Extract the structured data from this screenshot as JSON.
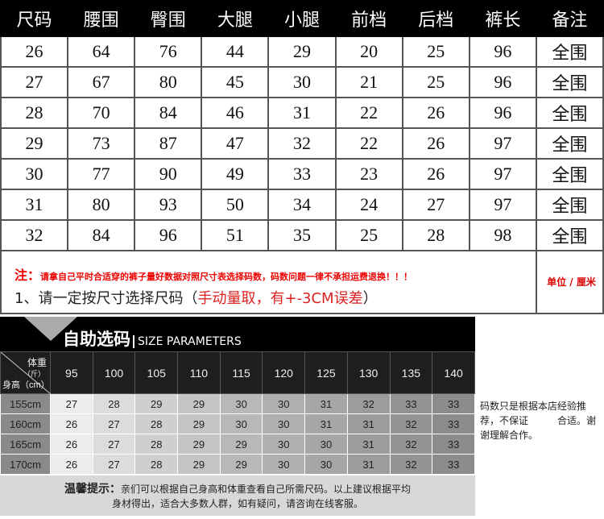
{
  "size_table": {
    "headers": [
      "尺码",
      "腰围",
      "臀围",
      "大腿",
      "小腿",
      "前档",
      "后档",
      "裤长",
      "备注"
    ],
    "rows": [
      [
        "26",
        "64",
        "76",
        "44",
        "29",
        "20",
        "25",
        "96",
        "全围"
      ],
      [
        "27",
        "67",
        "80",
        "45",
        "30",
        "21",
        "25",
        "96",
        "全围"
      ],
      [
        "28",
        "70",
        "84",
        "46",
        "31",
        "22",
        "26",
        "96",
        "全围"
      ],
      [
        "29",
        "73",
        "87",
        "47",
        "32",
        "22",
        "26",
        "97",
        "全围"
      ],
      [
        "30",
        "77",
        "90",
        "49",
        "33",
        "23",
        "26",
        "97",
        "全围"
      ],
      [
        "31",
        "80",
        "93",
        "50",
        "34",
        "24",
        "27",
        "97",
        "全围"
      ],
      [
        "32",
        "84",
        "96",
        "51",
        "35",
        "25",
        "28",
        "98",
        "全围"
      ]
    ]
  },
  "note": {
    "label": "注：",
    "text": "请拿自己平时合适穿的裤子量好数据对照尺寸表选择码数，码数问题一律不承担运费退换！！！",
    "line2_prefix": "1、请一定按尺寸选择尺码（",
    "line2_red": "手动量取，有+-3CM误差",
    "line2_suffix": "）",
    "unit": "单位 / 厘米"
  },
  "banner": {
    "title": "自助选码",
    "subtitle": "SIZE PARAMETERS"
  },
  "grid": {
    "weight_label": "体重",
    "weight_unit": "（斤）",
    "height_label": "身高（cm）",
    "weights": [
      "95",
      "100",
      "105",
      "110",
      "115",
      "120",
      "125",
      "130",
      "135",
      "140"
    ],
    "rows": [
      {
        "height": "155cm",
        "sizes": [
          "27",
          "28",
          "29",
          "29",
          "30",
          "30",
          "31",
          "32",
          "33",
          "33"
        ]
      },
      {
        "height": "160cm",
        "sizes": [
          "26",
          "27",
          "28",
          "29",
          "30",
          "30",
          "31",
          "31",
          "32",
          "33"
        ]
      },
      {
        "height": "165cm",
        "sizes": [
          "26",
          "27",
          "28",
          "29",
          "29",
          "30",
          "30",
          "31",
          "32",
          "33"
        ]
      },
      {
        "height": "170cm",
        "sizes": [
          "26",
          "27",
          "28",
          "29",
          "29",
          "30",
          "30",
          "31",
          "32",
          "33"
        ]
      }
    ]
  },
  "tip": {
    "label": "温馨提示：",
    "line1": "亲们可以根据自己身高和体重查看自己所需尺码。以上建议根据平均",
    "line2": "身材得出，适合大多数人群，如有疑问，请咨询在线客服。"
  },
  "side_note": "码数只是根据本店经验推荐，不保证　　　合适。谢谢理解合作。"
}
